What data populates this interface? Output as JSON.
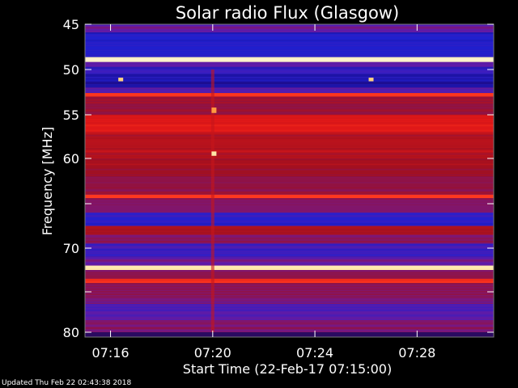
{
  "chart_data": {
    "type": "heatmap",
    "title": "Solar radio Flux (Glasgow)",
    "xlabel": "Start Time (22-Feb-17 07:15:00)",
    "ylabel": "Frequency [MHz]",
    "x_range_minutes": [
      0,
      16
    ],
    "ylim": [
      45,
      80
    ],
    "x_ticks": [
      {
        "label": "07:16",
        "minute": 1
      },
      {
        "label": "07:20",
        "minute": 5
      },
      {
        "label": "07:24",
        "minute": 9
      },
      {
        "label": "07:28",
        "minute": 13
      }
    ],
    "y_ticks": [
      45,
      50,
      55,
      60,
      65,
      70,
      75,
      80
    ],
    "y_tick_labels": [
      "45",
      "50",
      "55",
      "60",
      "",
      "70",
      "",
      "80"
    ],
    "colormap": [
      "#1a0060",
      "#2020d0",
      "#6a1aa0",
      "#a01020",
      "#e01818",
      "#ff3a20",
      "#ff9a40",
      "#ffe090",
      "#ffffff"
    ],
    "bands": [
      {
        "f0": 45.0,
        "f1": 45.5,
        "level": 0.25
      },
      {
        "f0": 45.5,
        "f1": 48.5,
        "level": 0.12
      },
      {
        "f0": 48.5,
        "f1": 49.1,
        "level": 0.95
      },
      {
        "f0": 49.1,
        "f1": 49.7,
        "level": 0.22
      },
      {
        "f0": 49.7,
        "f1": 50.5,
        "level": 0.16
      },
      {
        "f0": 50.5,
        "f1": 52.0,
        "level": 0.08
      },
      {
        "f0": 52.0,
        "f1": 52.6,
        "level": 0.2
      },
      {
        "f0": 52.6,
        "f1": 53.0,
        "level": 0.6
      },
      {
        "f0": 53.0,
        "f1": 55.0,
        "level": 0.35
      },
      {
        "f0": 55.0,
        "f1": 57.0,
        "level": 0.5
      },
      {
        "f0": 57.0,
        "f1": 60.0,
        "level": 0.42
      },
      {
        "f0": 60.0,
        "f1": 62.0,
        "level": 0.38
      },
      {
        "f0": 62.0,
        "f1": 64.0,
        "level": 0.34
      },
      {
        "f0": 64.0,
        "f1": 64.4,
        "level": 0.62
      },
      {
        "f0": 64.4,
        "f1": 66.0,
        "level": 0.3
      },
      {
        "f0": 66.0,
        "f1": 67.5,
        "level": 0.14
      },
      {
        "f0": 67.5,
        "f1": 68.5,
        "level": 0.4
      },
      {
        "f0": 68.5,
        "f1": 69.5,
        "level": 0.3
      },
      {
        "f0": 69.5,
        "f1": 71.0,
        "level": 0.18
      },
      {
        "f0": 71.0,
        "f1": 72.0,
        "level": 0.25
      },
      {
        "f0": 72.0,
        "f1": 72.5,
        "level": 0.9
      },
      {
        "f0": 72.5,
        "f1": 73.5,
        "level": 0.33
      },
      {
        "f0": 73.5,
        "f1": 74.0,
        "level": 0.6
      },
      {
        "f0": 74.0,
        "f1": 76.5,
        "level": 0.3
      },
      {
        "f0": 76.5,
        "f1": 78.5,
        "level": 0.22
      },
      {
        "f0": 78.5,
        "f1": 80.0,
        "level": 0.3
      }
    ],
    "features": [
      {
        "minute": 5.0,
        "f0": 50.0,
        "f1": 80.0,
        "level": 0.45
      },
      {
        "minute": 5.05,
        "f0": 54.2,
        "f1": 54.8,
        "level": 0.75
      },
      {
        "minute": 5.05,
        "f0": 59.2,
        "f1": 59.7,
        "level": 0.9
      },
      {
        "minute": 1.4,
        "f0": 50.9,
        "f1": 51.3,
        "level": 0.85
      },
      {
        "minute": 11.2,
        "f0": 50.9,
        "f1": 51.3,
        "level": 0.85
      }
    ]
  },
  "footer": "Updated Thu Feb 22 02:43:38 2018"
}
